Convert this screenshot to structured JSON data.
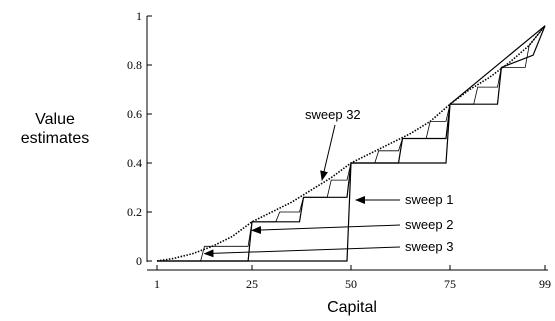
{
  "chart_data": {
    "type": "line",
    "xlabel": "Capital",
    "ylabel_lines": [
      "Value",
      "estimates"
    ],
    "xlim": [
      1,
      99
    ],
    "ylim": [
      0,
      1
    ],
    "x_ticks": [
      1,
      25,
      50,
      75,
      99
    ],
    "y_ticks": [
      0,
      0.2,
      0.4,
      0.6,
      0.8,
      1
    ],
    "y_tick_labels": [
      "0",
      "0.2",
      "0.4",
      "0.6",
      "0.8",
      "1"
    ],
    "series": [
      {
        "name": "sweep 1",
        "style": "solid",
        "points": [
          [
            1,
            0
          ],
          [
            49,
            0
          ],
          [
            50,
            0.4
          ],
          [
            74,
            0.4
          ],
          [
            75,
            0.64
          ],
          [
            99,
            0.96
          ]
        ]
      },
      {
        "name": "sweep 2",
        "style": "solid",
        "points": [
          [
            1,
            0
          ],
          [
            24,
            0
          ],
          [
            25,
            0.16
          ],
          [
            37,
            0.16
          ],
          [
            38,
            0.26
          ],
          [
            49,
            0.26
          ],
          [
            50,
            0.4
          ],
          [
            62,
            0.4
          ],
          [
            63,
            0.5
          ],
          [
            74,
            0.5
          ],
          [
            75,
            0.64
          ],
          [
            87,
            0.64
          ],
          [
            88,
            0.79
          ],
          [
            96,
            0.84
          ],
          [
            99,
            0.96
          ]
        ]
      },
      {
        "name": "sweep 3",
        "style": "solid",
        "points": [
          [
            1,
            0
          ],
          [
            12,
            0
          ],
          [
            13,
            0.06
          ],
          [
            24,
            0.06
          ],
          [
            25,
            0.16
          ],
          [
            31,
            0.16
          ],
          [
            32,
            0.2
          ],
          [
            37,
            0.2
          ],
          [
            38,
            0.26
          ],
          [
            44,
            0.26
          ],
          [
            45,
            0.33
          ],
          [
            49,
            0.33
          ],
          [
            50,
            0.4
          ],
          [
            56,
            0.4
          ],
          [
            57,
            0.45
          ],
          [
            62,
            0.45
          ],
          [
            63,
            0.5
          ],
          [
            69,
            0.5
          ],
          [
            70,
            0.57
          ],
          [
            74,
            0.57
          ],
          [
            75,
            0.64
          ],
          [
            81,
            0.64
          ],
          [
            82,
            0.71
          ],
          [
            87,
            0.71
          ],
          [
            88,
            0.79
          ],
          [
            94,
            0.79
          ],
          [
            95,
            0.88
          ],
          [
            99,
            0.96
          ]
        ]
      },
      {
        "name": "sweep 32",
        "style": "dotted",
        "points": [
          [
            1,
            0
          ],
          [
            5,
            0.01
          ],
          [
            10,
            0.03
          ],
          [
            15,
            0.06
          ],
          [
            20,
            0.1
          ],
          [
            25,
            0.16
          ],
          [
            30,
            0.2
          ],
          [
            35,
            0.24
          ],
          [
            40,
            0.29
          ],
          [
            45,
            0.34
          ],
          [
            50,
            0.4
          ],
          [
            55,
            0.44
          ],
          [
            60,
            0.48
          ],
          [
            65,
            0.52
          ],
          [
            70,
            0.57
          ],
          [
            75,
            0.64
          ],
          [
            80,
            0.7
          ],
          [
            85,
            0.75
          ],
          [
            90,
            0.81
          ],
          [
            95,
            0.88
          ],
          [
            99,
            0.96
          ]
        ]
      }
    ],
    "annotations": [
      {
        "text": "sweep 32",
        "target": [
          42,
          0.3
        ]
      },
      {
        "text": "sweep 1",
        "target": [
          50,
          0.3
        ]
      },
      {
        "text": "sweep 2",
        "target": [
          25,
          0.125
        ]
      },
      {
        "text": "sweep 3",
        "target": [
          13,
          0.03
        ]
      }
    ]
  }
}
